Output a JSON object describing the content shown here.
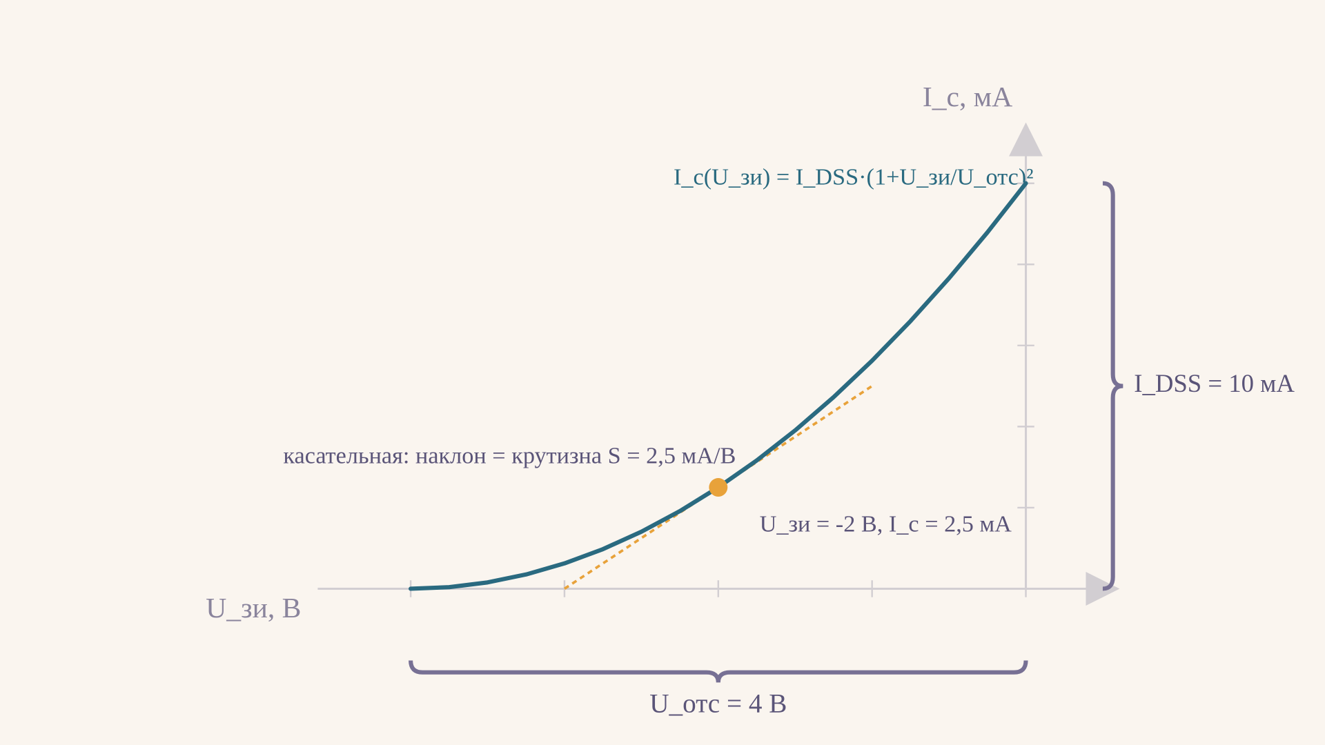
{
  "chart_data": {
    "type": "line",
    "x_label": "U_зи, В",
    "y_label": "I_с, мА",
    "formula": "I_с(U_зи) = I_DSS·(1+U_зи/U_отс)²",
    "x": [
      -4,
      -3.75,
      -3.5,
      -3.25,
      -3,
      -2.75,
      -2.5,
      -2.25,
      -2,
      -1.75,
      -1.5,
      -1.25,
      -1,
      -0.75,
      -0.5,
      -0.25,
      0
    ],
    "values": [
      0,
      0.0390625,
      0.15625,
      0.3515625,
      0.625,
      0.9765625,
      1.40625,
      1.9140625,
      2.5,
      3.1640625,
      3.90625,
      4.7265625,
      5.625,
      6.6015625,
      7.65625,
      8.7890625,
      10
    ],
    "color": "#2a6a80",
    "xlim": [
      -4,
      0
    ],
    "ylim": [
      0,
      10
    ],
    "xticks": [
      -4,
      -3,
      -2,
      -1,
      0
    ],
    "yticks": [
      0,
      2,
      4,
      6,
      8,
      10
    ],
    "point": {
      "x": -2,
      "y": 2.5,
      "label": "U_зи = -2 В, I_с = 2,5 мА",
      "color": "#e8a23a"
    },
    "tangent": {
      "label": "касательная: наклон = крутизна S = 2,5 мА/В",
      "x": [
        -3,
        -1
      ],
      "values": [
        0,
        5
      ],
      "color": "#e8a23a"
    },
    "idss_brace": {
      "label": "I_DSS = 10 мА",
      "value": 10
    },
    "uots_brace": {
      "label": "U_отс = 4 В",
      "value": 4
    }
  }
}
